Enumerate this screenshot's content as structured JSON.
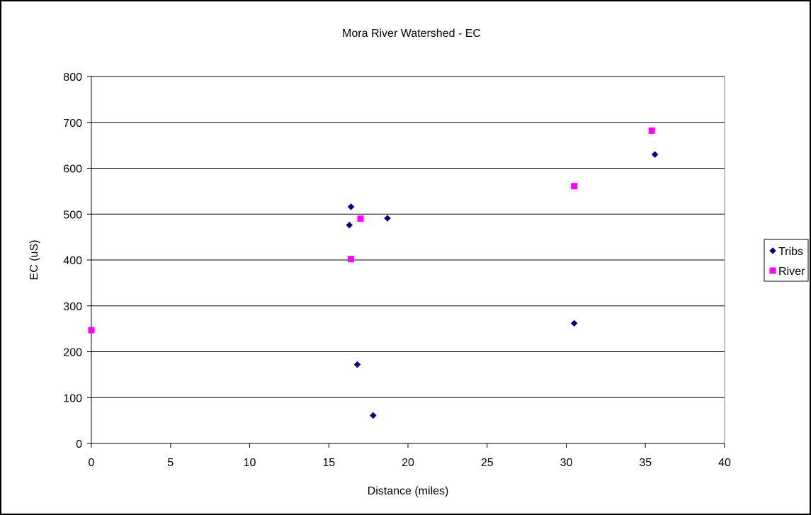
{
  "chart_data": {
    "type": "scatter",
    "title": "Mora River Watershed - EC",
    "xlabel": "Distance (miles)",
    "ylabel": "EC (uS)",
    "xlim": [
      0,
      40
    ],
    "ylim": [
      0,
      800
    ],
    "x_ticks": [
      0,
      5,
      10,
      15,
      20,
      25,
      30,
      35,
      40
    ],
    "y_ticks": [
      0,
      100,
      200,
      300,
      400,
      500,
      600,
      700,
      800
    ],
    "grid": "horizontal",
    "legend_position": "right",
    "series": [
      {
        "name": "Tribs",
        "marker": "diamond",
        "color": "#000080",
        "points": [
          {
            "x": 16.4,
            "y": 516
          },
          {
            "x": 16.3,
            "y": 476
          },
          {
            "x": 18.7,
            "y": 491
          },
          {
            "x": 16.8,
            "y": 172
          },
          {
            "x": 17.8,
            "y": 61
          },
          {
            "x": 30.5,
            "y": 262
          },
          {
            "x": 35.6,
            "y": 630
          }
        ]
      },
      {
        "name": "River",
        "marker": "square",
        "color": "#ff00ff",
        "points": [
          {
            "x": 0,
            "y": 247
          },
          {
            "x": 16.4,
            "y": 402
          },
          {
            "x": 17.0,
            "y": 490
          },
          {
            "x": 30.5,
            "y": 561
          },
          {
            "x": 35.4,
            "y": 682
          }
        ]
      }
    ]
  }
}
